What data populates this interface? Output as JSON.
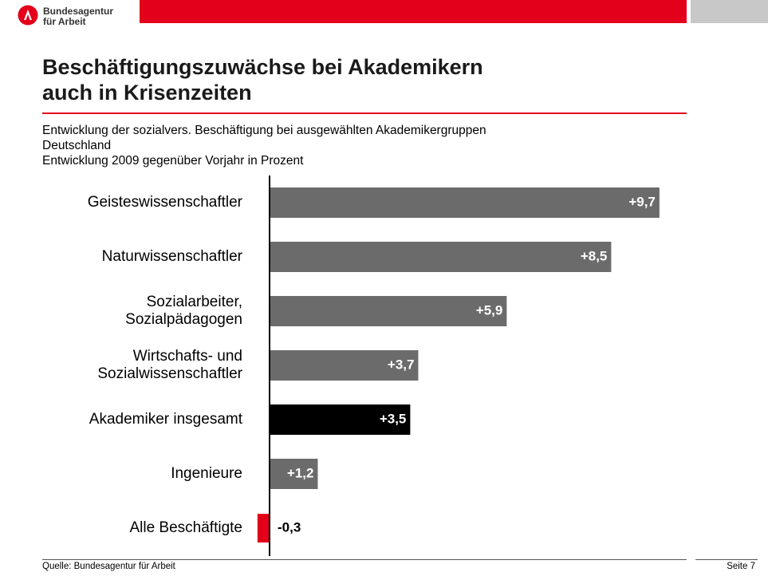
{
  "header": {
    "logo_line1": "Bundesagentur",
    "logo_line2": "für Arbeit",
    "accent_color": "#e2001a",
    "grey_color": "#c8c8c8",
    "logo_icon": "ba-logo-icon"
  },
  "title": {
    "line1": "Beschäftigungszuwächse bei Akademikern",
    "line2": "auch in Krisenzeiten"
  },
  "subtitle": {
    "line1": "Entwicklung der sozialvers. Beschäftigung bei ausgewählten Akademikergruppen",
    "line2": "Deutschland",
    "line3": "Entwicklung 2009 gegenüber Vorjahr in Prozent"
  },
  "chart_data": {
    "type": "bar",
    "orientation": "horizontal",
    "categories": [
      [
        "Geisteswissenschaftler"
      ],
      [
        "Naturwissenschaftler"
      ],
      [
        "Sozialarbeiter,",
        "Sozialpädagogen"
      ],
      [
        "Wirtschafts- und",
        "Sozialwissenschaftler"
      ],
      [
        "Akademiker insgesamt"
      ],
      [
        "Ingenieure"
      ],
      [
        "Alle Beschäftigte"
      ]
    ],
    "values": [
      9.7,
      8.5,
      5.9,
      3.7,
      3.5,
      1.2,
      -0.3
    ],
    "value_labels": [
      "+9,7",
      "+8,5",
      "+5,9",
      "+3,7",
      "+3,5",
      "+1,2",
      "-0,3"
    ],
    "bar_colors": [
      "#6b6b6b",
      "#6b6b6b",
      "#6b6b6b",
      "#6b6b6b",
      "#000000",
      "#6b6b6b",
      "#e2001a"
    ],
    "xlim": [
      -0.35,
      9.7
    ]
  },
  "footer": {
    "source": "Quelle:  Bundesagentur für Arbeit",
    "page": "Seite 7"
  }
}
